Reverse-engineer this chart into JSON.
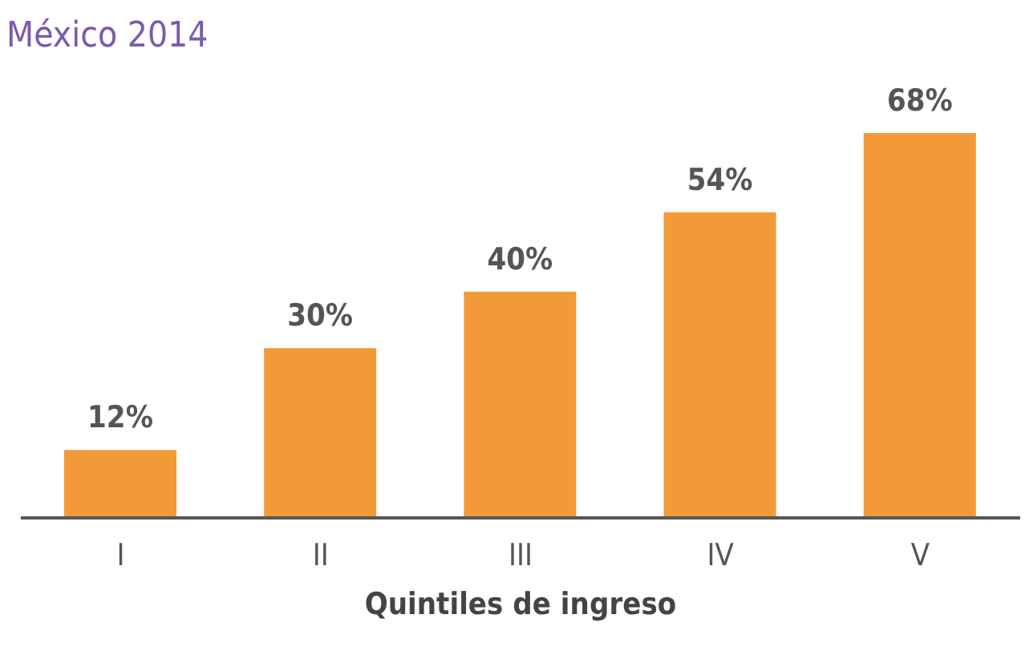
{
  "chart_data": {
    "type": "bar",
    "title": "México 2014",
    "xlabel": "Quintiles de ingreso",
    "categories": [
      "I",
      "II",
      "III",
      "IV",
      "V"
    ],
    "values": [
      12,
      30,
      40,
      54,
      68
    ],
    "value_labels": [
      "12%",
      "30%",
      "40%",
      "54%",
      "68%"
    ],
    "color": "#f29a38",
    "grid": false,
    "legend": false
  }
}
